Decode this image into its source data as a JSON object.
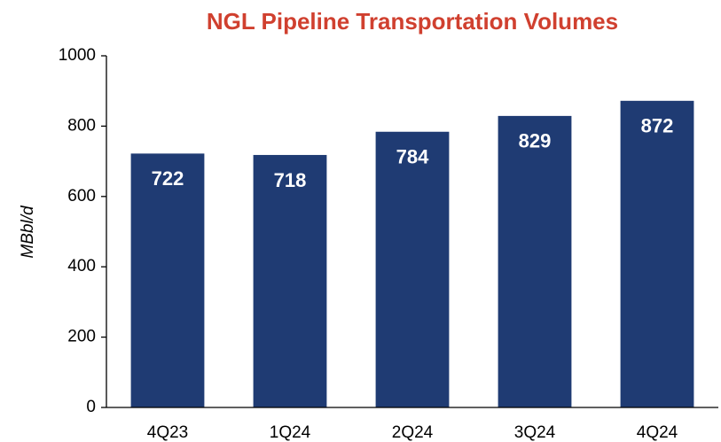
{
  "chart_data": {
    "type": "bar",
    "title": "NGL Pipeline Transportation Volumes",
    "y_label": "MBbl/d",
    "categories": [
      "4Q23",
      "1Q24",
      "2Q24",
      "3Q24",
      "4Q24"
    ],
    "values": [
      722,
      718,
      784,
      829,
      872
    ],
    "color": "#1f3b73",
    "ylim": [
      0,
      1000
    ],
    "yticks": [
      0,
      200,
      400,
      600,
      800,
      1000
    ],
    "grid": false
  }
}
